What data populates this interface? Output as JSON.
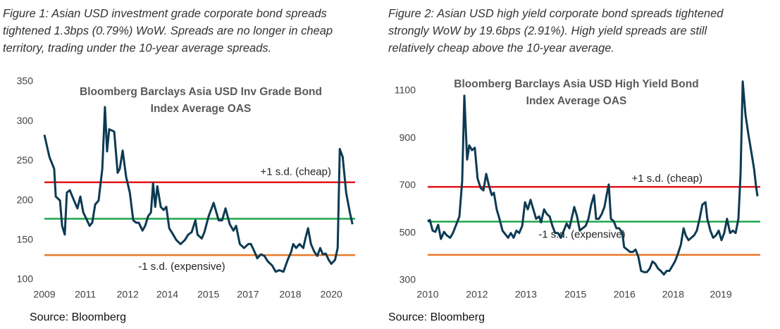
{
  "chart_data": [
    {
      "type": "line",
      "caption": [
        "Figure 1: Asian USD investment grade corporate bond spreads",
        "tightened 1.3bps (0.79%) WoW. Spreads are no longer in cheap",
        "territory, trading under the 10-year average spreads."
      ],
      "title": [
        "Bloomberg Barclays Asia USD Inv Grade Bond",
        "Index Average OAS"
      ],
      "source": "Source: Bloomberg",
      "series": [
        {
          "color": "#0c3a52",
          "x": [
            2009.0,
            2009.19,
            2009.37,
            2009.43,
            2009.59,
            2009.67,
            2009.77,
            2009.85,
            2009.96,
            2010.12,
            2010.25,
            2010.36,
            2010.47,
            2010.57,
            2010.71,
            2010.81,
            2010.92,
            2011.05,
            2011.19,
            2011.29,
            2011.37,
            2011.45,
            2011.64,
            2011.77,
            2011.85,
            2011.96,
            2012.09,
            2012.23,
            2012.36,
            2012.47,
            2012.57,
            2012.71,
            2012.81,
            2012.92,
            2013.03,
            2013.11,
            2013.19,
            2013.27,
            2013.4,
            2013.51,
            2013.61,
            2013.72,
            2013.85,
            2013.99,
            2014.15,
            2014.31,
            2014.44,
            2014.57,
            2014.71,
            2014.79,
            2014.95,
            2015.05,
            2015.21,
            2015.4,
            2015.59,
            2015.72,
            2015.85,
            2016.01,
            2016.15,
            2016.25,
            2016.39,
            2016.55,
            2016.71,
            2016.81,
            2016.95,
            2017.05,
            2017.19,
            2017.32,
            2017.45,
            2017.61,
            2017.75,
            2017.88,
            2018.04,
            2018.2,
            2018.33,
            2018.41,
            2018.52,
            2018.65,
            2018.79,
            2018.87,
            2018.97,
            2019.08,
            2019.21,
            2019.32,
            2019.43,
            2019.53,
            2019.64,
            2019.75,
            2019.85,
            2019.99,
            2020.09,
            2020.17,
            2020.28,
            2020.41,
            2020.55,
            2020.65
          ],
          "values": [
            283,
            255,
            240,
            205,
            200,
            168,
            157,
            210,
            213,
            200,
            190,
            205,
            185,
            178,
            168,
            172,
            195,
            200,
            240,
            318,
            262,
            290,
            287,
            235,
            240,
            263,
            230,
            210,
            175,
            172,
            172,
            162,
            168,
            180,
            185,
            222,
            192,
            218,
            192,
            188,
            192,
            165,
            158,
            150,
            145,
            150,
            157,
            160,
            175,
            157,
            152,
            160,
            180,
            197,
            175,
            175,
            190,
            170,
            162,
            168,
            145,
            140,
            145,
            145,
            135,
            127,
            132,
            130,
            123,
            118,
            110,
            112,
            110,
            125,
            135,
            145,
            140,
            145,
            140,
            152,
            165,
            145,
            135,
            130,
            140,
            132,
            133,
            125,
            120,
            125,
            140,
            265,
            255,
            210,
            185,
            170
          ]
        }
      ],
      "reference_lines": [
        {
          "value": 223,
          "color": "#e3151b",
          "label": "+1 s.d. (cheap)"
        },
        {
          "value": 177,
          "color": "#1ea64b"
        },
        {
          "value": 131,
          "color": "#e8792a",
          "label": "-1 s.d. (expensive)"
        }
      ],
      "xlim": [
        2009,
        2020.75
      ],
      "xticks": [
        {
          "value": 2009,
          "label": "2009"
        },
        {
          "value": 2010.55,
          "label": "2011"
        },
        {
          "value": 2012.15,
          "label": "2012"
        },
        {
          "value": 2013.65,
          "label": "2014"
        },
        {
          "value": 2015.2,
          "label": "2015"
        },
        {
          "value": 2016.7,
          "label": "2017"
        },
        {
          "value": 2018.3,
          "label": "2018"
        },
        {
          "value": 2019.85,
          "label": "2020"
        }
      ],
      "ylim": [
        100,
        350
      ],
      "yticks": [
        100,
        150,
        200,
        250,
        300,
        350
      ]
    },
    {
      "type": "line",
      "caption": [
        "Figure 2: Asian USD high yield corporate bond spreads tightened",
        "strongly WoW by 19.6bps (2.91%). High yield spreads are still",
        "relatively cheap above the 10-year average."
      ],
      "title": [
        "Bloomberg Barclays Asia USD High Yield Bond",
        "Index Average OAS"
      ],
      "source": "Source: Bloomberg",
      "series": [
        {
          "color": "#0c3a52",
          "x": [
            2010.0,
            2010.07,
            2010.16,
            2010.25,
            2010.34,
            2010.43,
            2010.53,
            2010.62,
            2010.73,
            2010.82,
            2010.94,
            2011.03,
            2011.12,
            2011.19,
            2011.28,
            2011.35,
            2011.44,
            2011.53,
            2011.62,
            2011.72,
            2011.81,
            2011.9,
            2011.99,
            2012.08,
            2012.15,
            2012.24,
            2012.33,
            2012.43,
            2012.52,
            2012.61,
            2012.7,
            2012.79,
            2012.88,
            2012.97,
            2013.07,
            2013.16,
            2013.25,
            2013.34,
            2013.43,
            2013.52,
            2013.62,
            2013.68,
            2013.78,
            2013.87,
            2013.96,
            2014.05,
            2014.14,
            2014.23,
            2014.32,
            2014.42,
            2014.51,
            2014.6,
            2014.69,
            2014.76,
            2014.85,
            2014.94,
            2015.03,
            2015.13,
            2015.22,
            2015.31,
            2015.4,
            2015.47,
            2015.56,
            2015.65,
            2015.74,
            2015.81,
            2015.88,
            2015.95,
            2016.04,
            2016.13,
            2016.22,
            2016.32,
            2016.38,
            2016.48,
            2016.57,
            2016.66,
            2016.75,
            2016.84,
            2016.93,
            2017.03,
            2017.12,
            2017.21,
            2017.3,
            2017.39,
            2017.48,
            2017.57,
            2017.67,
            2017.76,
            2017.85,
            2017.94,
            2018.03,
            2018.12,
            2018.22,
            2018.31,
            2018.38,
            2018.47,
            2018.56,
            2018.65,
            2018.74,
            2018.83,
            2018.92,
            2019.02,
            2019.08,
            2019.18,
            2019.27,
            2019.36,
            2019.45,
            2019.54,
            2019.63,
            2019.72,
            2019.82,
            2019.91,
            2020.0,
            2020.09,
            2020.16,
            2020.23,
            2020.32,
            2020.41,
            2020.5,
            2020.6,
            2020.66,
            2020.71
          ],
          "values": [
            550,
            555,
            510,
            505,
            535,
            475,
            505,
            490,
            480,
            500,
            540,
            570,
            720,
            1080,
            810,
            870,
            850,
            860,
            730,
            690,
            680,
            750,
            700,
            660,
            670,
            600,
            560,
            510,
            495,
            480,
            500,
            480,
            510,
            500,
            530,
            630,
            600,
            640,
            600,
            560,
            570,
            545,
            600,
            580,
            570,
            530,
            500,
            500,
            480,
            510,
            540,
            520,
            570,
            610,
            570,
            510,
            520,
            530,
            560,
            620,
            660,
            560,
            560,
            580,
            610,
            660,
            705,
            560,
            550,
            520,
            520,
            500,
            440,
            430,
            420,
            420,
            430,
            400,
            340,
            335,
            335,
            350,
            380,
            370,
            350,
            340,
            325,
            340,
            340,
            360,
            380,
            410,
            450,
            520,
            490,
            470,
            480,
            490,
            510,
            560,
            620,
            630,
            560,
            510,
            480,
            490,
            510,
            470,
            500,
            560,
            500,
            510,
            500,
            560,
            750,
            1140,
            1000,
            920,
            850,
            770,
            700,
            655
          ]
        }
      ],
      "reference_lines": [
        {
          "value": 695,
          "color": "#e3151b",
          "label": "+1 s.d. (cheap)"
        },
        {
          "value": 548,
          "color": "#1ea64b"
        },
        {
          "value": 408,
          "color": "#e8792a",
          "label": "-1 s.d. (expensive)"
        }
      ],
      "xlim": [
        2010,
        2020.8
      ],
      "xticks": [
        {
          "value": 2010,
          "label": "2010"
        },
        {
          "value": 2011.6,
          "label": "2012"
        },
        {
          "value": 2013.19,
          "label": "2013"
        },
        {
          "value": 2014.8,
          "label": "2015"
        },
        {
          "value": 2016.39,
          "label": "2016"
        },
        {
          "value": 2017.97,
          "label": "2018"
        },
        {
          "value": 2019.52,
          "label": "2019"
        }
      ],
      "ylim": [
        300,
        1170
      ],
      "yticks": [
        300,
        500,
        700,
        900,
        1100
      ]
    }
  ]
}
